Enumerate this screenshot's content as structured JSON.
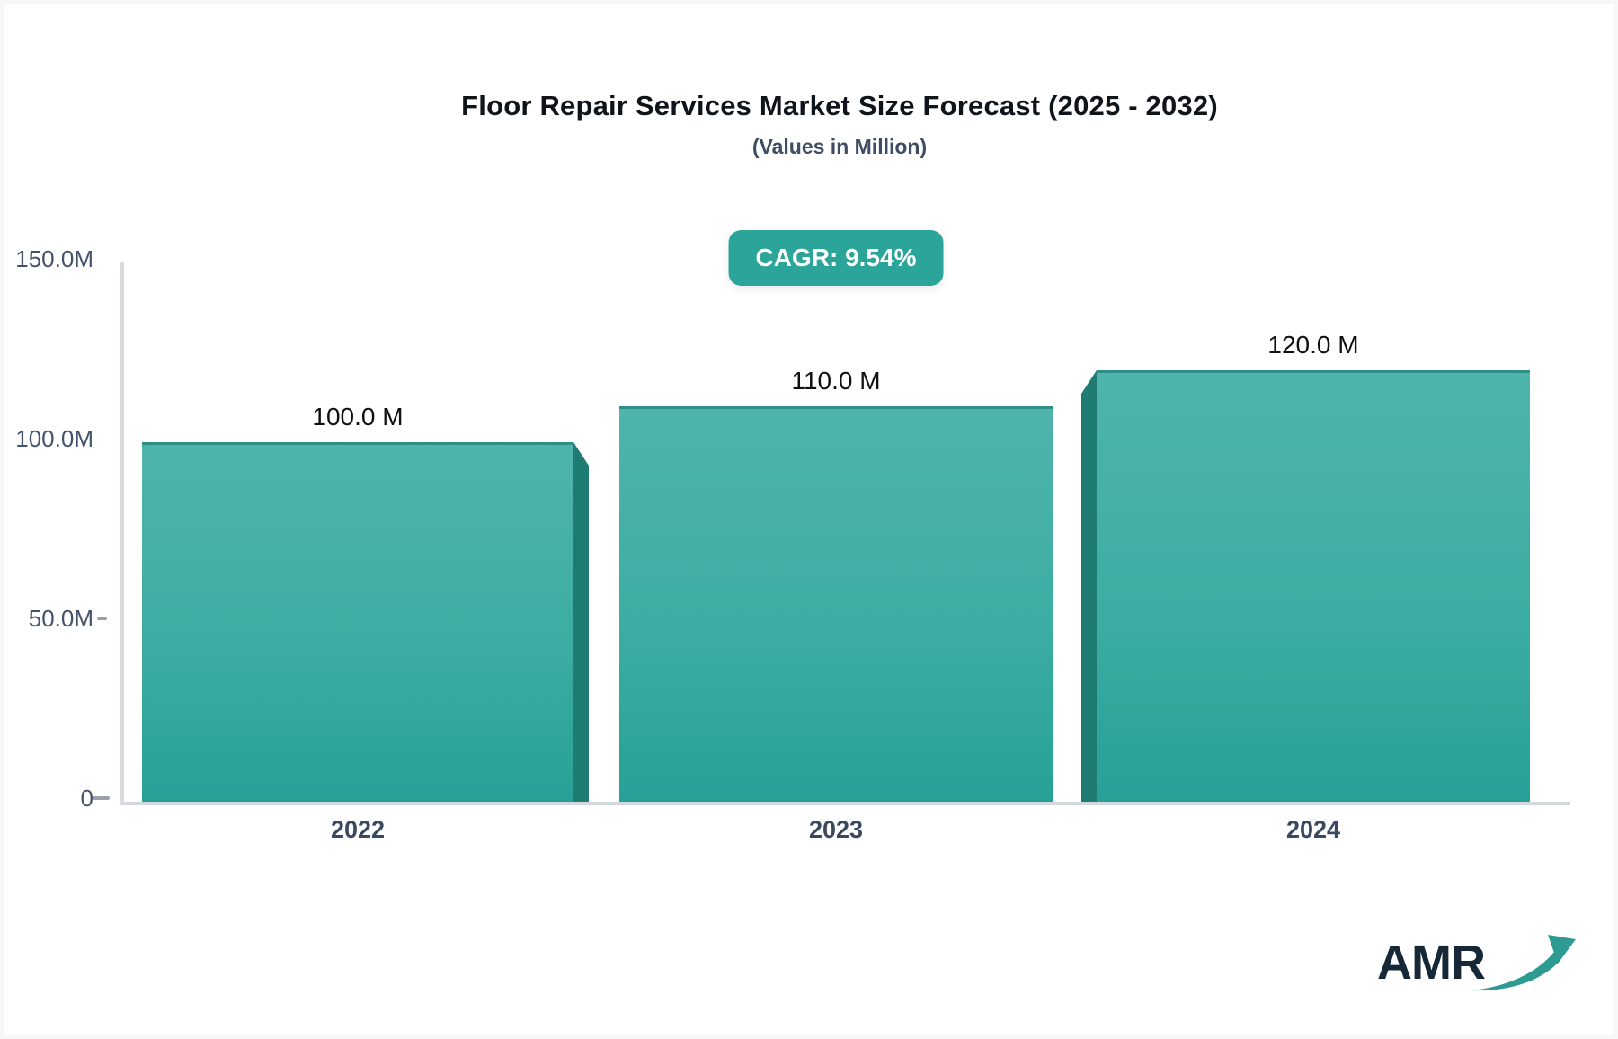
{
  "title": "Floor Repair Services Market Size Forecast (2025 - 2032)",
  "subtitle": "(Values in Million)",
  "cagr_badge": "CAGR: 9.54%",
  "logo_text": "AMR",
  "chart_data": {
    "type": "bar",
    "title": "Floor Repair Services Market Size Forecast (2025 - 2032)",
    "subtitle": "(Values in Million)",
    "unit": "Million",
    "categories": [
      "2022",
      "2023",
      "2024"
    ],
    "values": [
      100.0,
      110.0,
      120.0
    ],
    "value_labels": [
      "100.0 M",
      "110.0 M",
      "120.0 M"
    ],
    "cagr_percent": 9.54,
    "y_ticks": [
      "150.0M",
      "100.0M",
      "50.0M",
      "0"
    ],
    "ylim": [
      0,
      150
    ],
    "grid": false,
    "legend": "none",
    "bar_color_top": "#4fb4ab",
    "bar_color_bottom": "#27a197",
    "bar_side_color": "#1f7c72",
    "accent_color": "#2ba49a"
  }
}
